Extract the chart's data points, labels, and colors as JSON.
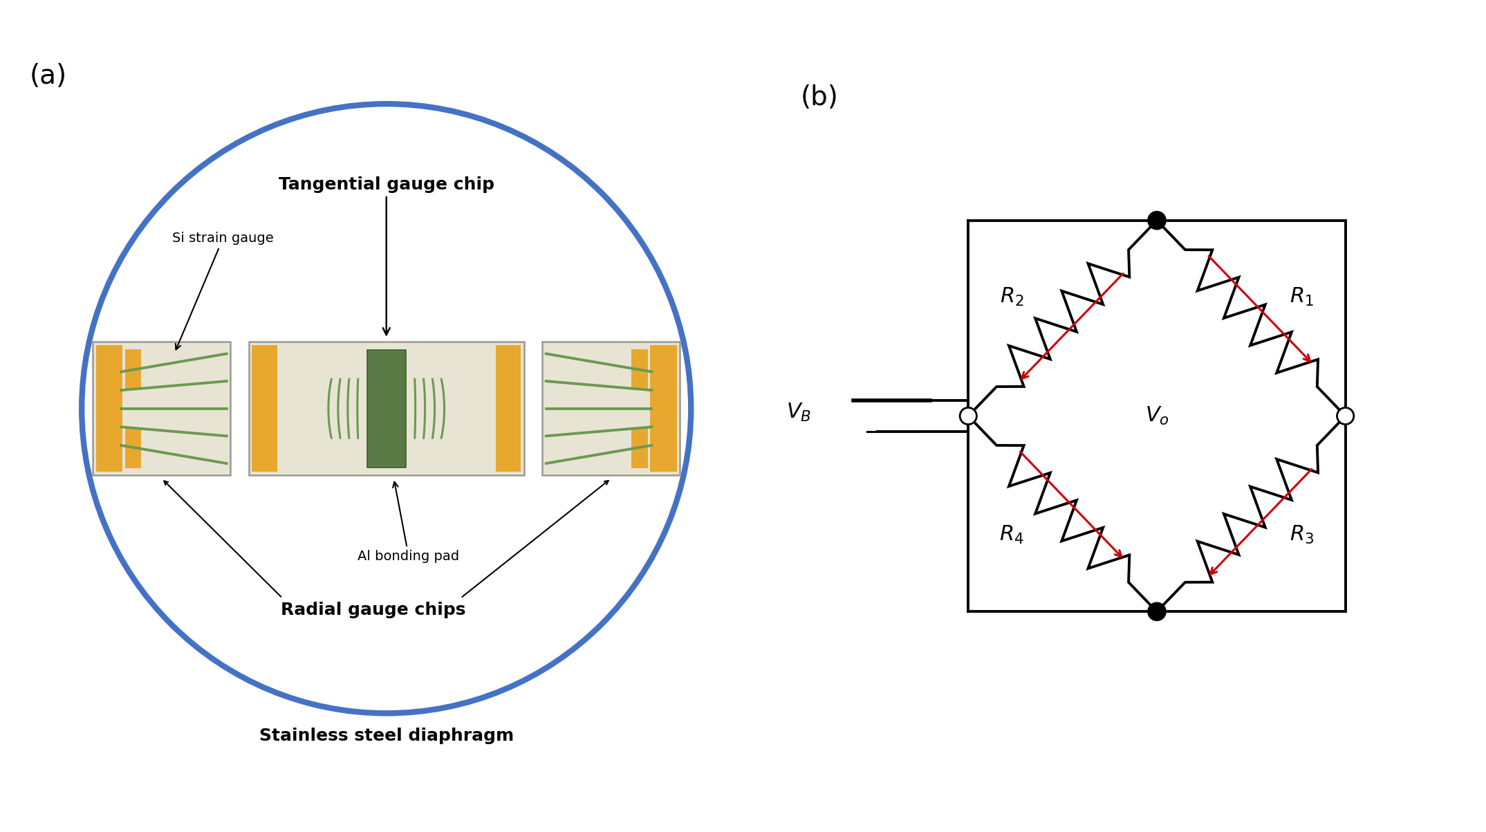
{
  "panel_a_label": "(a)",
  "panel_b_label": "(b)",
  "circle_color": "#4472c4",
  "circle_linewidth": 5,
  "chip_bg_color": "#e8e4d4",
  "chip_border_color": "#999990",
  "orange_pad_color": "#e8a830",
  "green_gauge_color": "#6a9a50",
  "green_dark_color": "#3a6020",
  "green_center_color": "#5a7a45",
  "label_tangential": "Tangential gauge chip",
  "label_radial": "Radial gauge chips",
  "label_si": "Si strain gauge",
  "label_al": "Al bonding pad",
  "label_diaphragm": "Stainless steel diaphragm",
  "resistor_arrow_color": "#cc0000",
  "bg_color": "#ffffff"
}
